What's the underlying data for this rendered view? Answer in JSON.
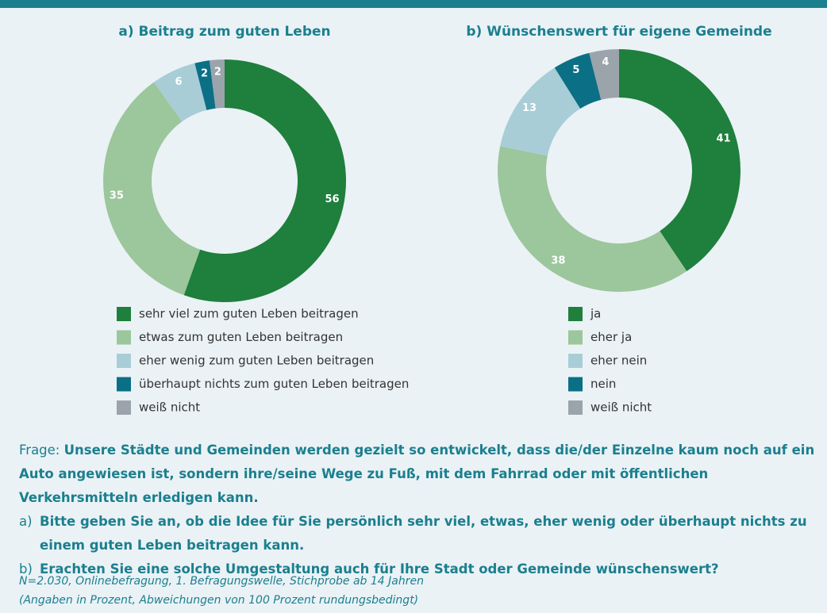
{
  "chart_data": [
    {
      "type": "pie",
      "donut": true,
      "title": "a) Beitrag zum guten Leben",
      "categories": [
        "sehr viel zum guten Leben beitragen",
        "etwas zum guten Leben beitragen",
        "eher wenig zum guten Leben beitragen",
        "überhaupt nichts zum guten Leben beitragen",
        "weiß nicht"
      ],
      "values": [
        56,
        35,
        6,
        2,
        2
      ],
      "colors": [
        "#1f7f3c",
        "#9cc69b",
        "#a8cdd7",
        "#0b6f86",
        "#9aa4aa"
      ]
    },
    {
      "type": "pie",
      "donut": true,
      "title": "b) Wünschenswert für eigene Gemeinde",
      "categories": [
        "ja",
        "eher ja",
        "eher nein",
        "nein",
        "weiß nicht"
      ],
      "values": [
        41,
        38,
        13,
        5,
        4
      ],
      "colors": [
        "#1f7f3c",
        "#9cc69b",
        "#a8cdd7",
        "#0b6f86",
        "#9aa4aa"
      ]
    }
  ],
  "question": {
    "label": "Frage:",
    "text": "Unsere Städte und Gemeinden werden gezielt so entwickelt, dass die/der Einzelne kaum noch auf ein Auto angewiesen ist, sondern ihre/seine Wege zu Fuß, mit dem Fahrrad oder mit öffentlichen Verkehrsmitteln erledigen kann.",
    "items": [
      {
        "label": "a)",
        "text": "Bitte geben Sie an, ob die Idee für Sie persönlich sehr viel, etwas, eher wenig oder überhaupt nichts zu einem guten Leben beitragen kann."
      },
      {
        "label": "b)",
        "text": "Erachten Sie eine solche Umgestaltung auch für Ihre Stadt oder Gemeinde wünschenswert?"
      }
    ]
  },
  "notes": [
    "N=2.030, Onlinebefragung, 1. Befragungswelle, Stichprobe ab 14 Jahren",
    "(Angaben in Prozent, Abweichungen von 100 Prozent rundungsbedingt)"
  ]
}
